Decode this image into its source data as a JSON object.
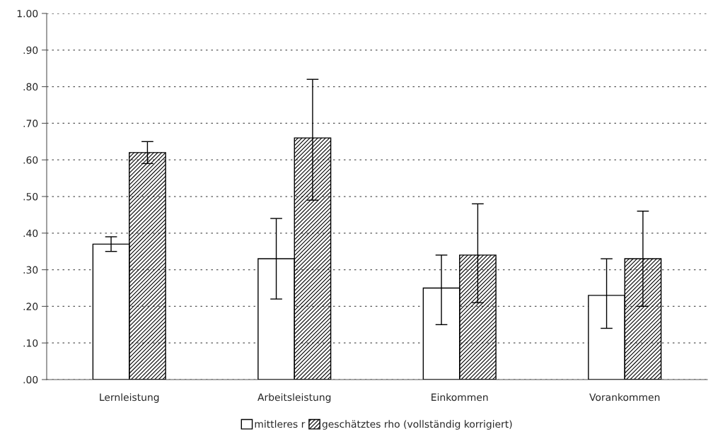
{
  "chart_data": {
    "type": "bar",
    "categories": [
      "Lernleistung",
      "Arbeitsleistung",
      "Einkommen",
      "Vorankommen"
    ],
    "series": [
      {
        "name": "mittleres r",
        "color": "#ffffff",
        "values": [
          0.37,
          0.33,
          0.25,
          0.23
        ],
        "errors": [
          [
            0.35,
            0.39
          ],
          [
            0.22,
            0.44
          ],
          [
            0.15,
            0.34
          ],
          [
            0.14,
            0.33
          ]
        ]
      },
      {
        "name": "geschätztes rho (vollständig korrigiert)",
        "color": "#000000",
        "values": [
          0.62,
          0.66,
          0.34,
          0.33
        ],
        "errors": [
          [
            0.59,
            0.65
          ],
          [
            0.49,
            0.82
          ],
          [
            0.21,
            0.48
          ],
          [
            0.2,
            0.46
          ]
        ]
      }
    ],
    "ylim": [
      0,
      1
    ],
    "yticks": [
      {
        "value": 0,
        "label": ".00"
      },
      {
        "value": 0.1,
        "label": ".10"
      },
      {
        "value": 0.2,
        "label": ".20"
      },
      {
        "value": 0.3,
        "label": ".30"
      },
      {
        "value": 0.4,
        "label": ".40"
      },
      {
        "value": 0.5,
        "label": ".50"
      },
      {
        "value": 0.6,
        "label": ".60"
      },
      {
        "value": 0.7,
        "label": ".70"
      },
      {
        "value": 0.8,
        "label": ".80"
      },
      {
        "value": 0.9,
        "label": ".90"
      },
      {
        "value": 1,
        "label": "1.00"
      }
    ],
    "grid": "y",
    "legend": "bottom"
  }
}
